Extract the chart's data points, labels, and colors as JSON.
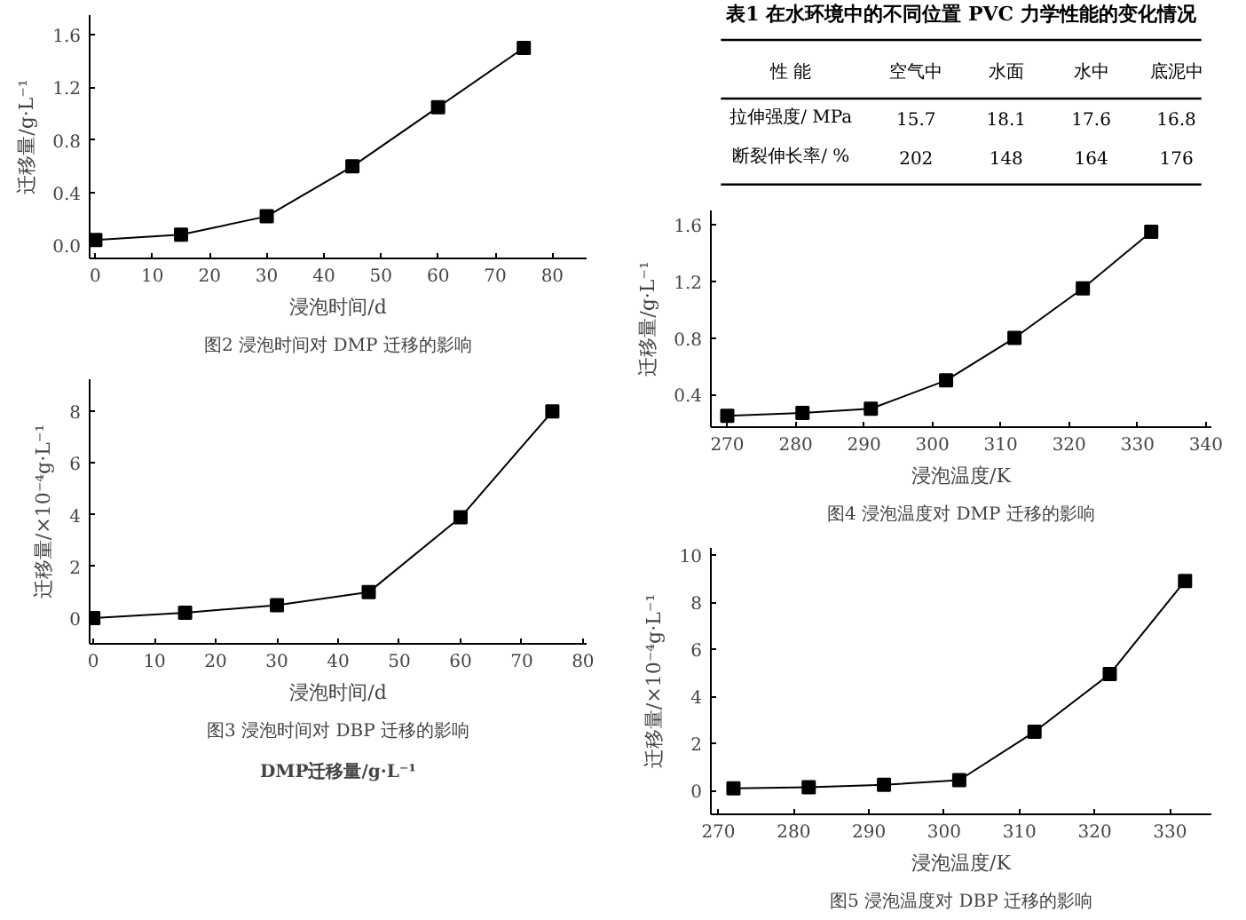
{
  "chart_data": [
    {
      "type": "line",
      "title": "图2 浸泡时间对 DMP 迁移的影响",
      "xlabel": "浸泡时间/d",
      "ylabel": "迁移量/g·L⁻¹",
      "x": [
        0,
        15,
        30,
        45,
        60,
        75
      ],
      "series": [
        {
          "color": "#000000",
          "values": [
            0.04,
            0.08,
            0.22,
            0.6,
            1.05,
            1.5
          ]
        }
      ],
      "xlim": [
        -1,
        86
      ],
      "ylim": [
        -0.1,
        1.75
      ],
      "xticks": [
        0,
        10,
        20,
        30,
        40,
        50,
        60,
        70,
        80
      ],
      "yticks": [
        {
          "value": 0,
          "label": "0.0"
        },
        {
          "value": 0.4,
          "label": "0.4"
        },
        {
          "value": 0.8,
          "label": "0.8"
        },
        {
          "value": 1.2,
          "label": "1.2"
        },
        {
          "value": 1.6,
          "label": "1.6"
        }
      ],
      "marker": "square",
      "line_style": "solid"
    },
    {
      "type": "other",
      "title": "表1 在水环境中的不同位置 PVC 力学性能的变化情况",
      "annotations": [
        "性 能",
        "空气中",
        "水面",
        "水中",
        "底泥中",
        "拉伸强度/ MPa",
        "15.7",
        "18.1",
        "17.6",
        "16.8",
        "断裂伸长率/ %",
        "202",
        "148",
        "164",
        "176"
      ]
    },
    {
      "type": "line",
      "title": "图4 浸泡温度对 DMP 迁移的影响",
      "xlabel": "浸泡温度/K",
      "ylabel": "迁移量/g·L⁻¹",
      "x": [
        270,
        281,
        291,
        302,
        312,
        322,
        332
      ],
      "series": [
        {
          "color": "#000000",
          "values": [
            0.25,
            0.27,
            0.3,
            0.5,
            0.8,
            1.15,
            1.55
          ]
        }
      ],
      "xlim": [
        267.6,
        340.8
      ],
      "ylim": [
        0.17,
        1.7
      ],
      "xticks": [
        270,
        280,
        290,
        300,
        310,
        320,
        330,
        340
      ],
      "yticks": [
        0.4,
        0.8,
        1.2,
        1.6
      ],
      "marker": "square",
      "line_style": "solid"
    },
    {
      "type": "line",
      "title": "图3 浸泡时间对 DBP 迁移的影响",
      "xlabel": "浸泡时间/d",
      "ylabel": "迁移量/×10⁻⁴g·L⁻¹",
      "x": [
        0,
        15,
        30,
        45,
        60,
        75
      ],
      "series": [
        {
          "color": "#000000",
          "values": [
            0,
            0.2,
            0.5,
            1.0,
            3.9,
            8.0
          ]
        }
      ],
      "xlim": [
        -0.6,
        80.6
      ],
      "ylim": [
        -1,
        9.25
      ],
      "xticks": [
        0,
        10,
        20,
        30,
        40,
        50,
        60,
        70,
        80
      ],
      "yticks": [
        0,
        2,
        4,
        6,
        8
      ],
      "marker": "square",
      "line_style": "solid",
      "annotations": [
        "DMP迁移量/g·L⁻¹"
      ]
    },
    {
      "type": "line",
      "title": "图5 浸泡温度对 DBP 迁移的影响",
      "xlabel": "浸泡温度/K",
      "ylabel": "迁移量/×10⁻⁴g·L⁻¹",
      "x": [
        272,
        282,
        292,
        302,
        312,
        322,
        332
      ],
      "series": [
        {
          "color": "#000000",
          "values": [
            0.1,
            0.15,
            0.25,
            0.45,
            2.5,
            4.95,
            8.9
          ]
        }
      ],
      "xlim": [
        269,
        335.5
      ],
      "ylim": [
        -1,
        10.3
      ],
      "xticks": [
        270,
        280,
        290,
        300,
        310,
        320,
        330
      ],
      "yticks": [
        0,
        2,
        4,
        6,
        8,
        10
      ],
      "marker": "square",
      "line_style": "solid"
    }
  ]
}
